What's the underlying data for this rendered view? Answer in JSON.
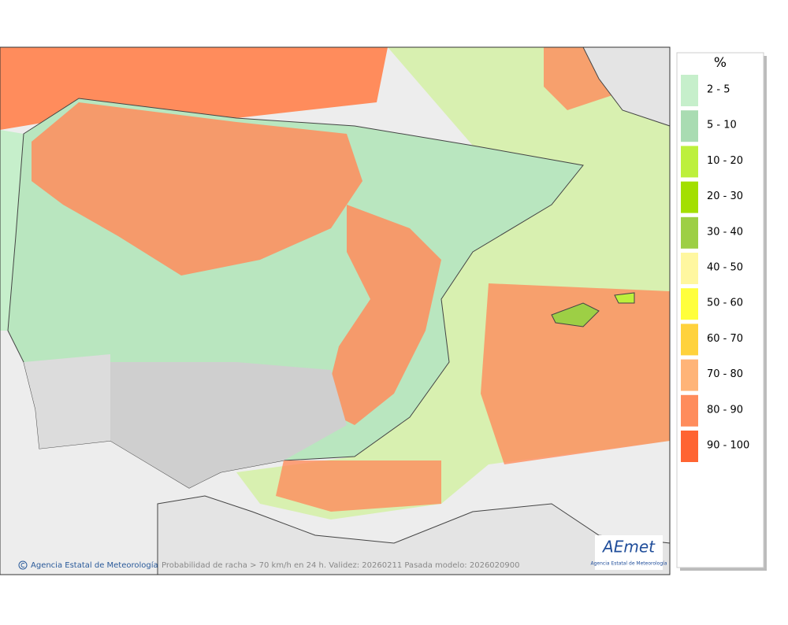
{
  "legend": {
    "title": "%",
    "items": [
      {
        "label": "2 - 5",
        "color": "#c6efcb"
      },
      {
        "label": "5 - 10",
        "color": "#a9dcb2"
      },
      {
        "label": "10 - 20",
        "color": "#bdf03c"
      },
      {
        "label": "20 - 30",
        "color": "#a3df00"
      },
      {
        "label": "30 - 40",
        "color": "#9dcf45"
      },
      {
        "label": "40 - 50",
        "color": "#fff7a0"
      },
      {
        "label": "50 - 60",
        "color": "#ffff3c"
      },
      {
        "label": "60 - 70",
        "color": "#ffd23c"
      },
      {
        "label": "70 - 80",
        "color": "#ffb478"
      },
      {
        "label": "80 - 90",
        "color": "#ff8c5c"
      },
      {
        "label": "90 - 100",
        "color": "#ff6432"
      }
    ]
  },
  "footer": {
    "credit": "Agencia Estatal de Meteorología",
    "caption": "Probabilidad de racha > 70 km/h en 24 h. Validez: 20260211 Pasada modelo: 2026020900"
  },
  "logo": {
    "text": "AEmet",
    "subtitle": "Agencia Estatal de Meteorología"
  }
}
